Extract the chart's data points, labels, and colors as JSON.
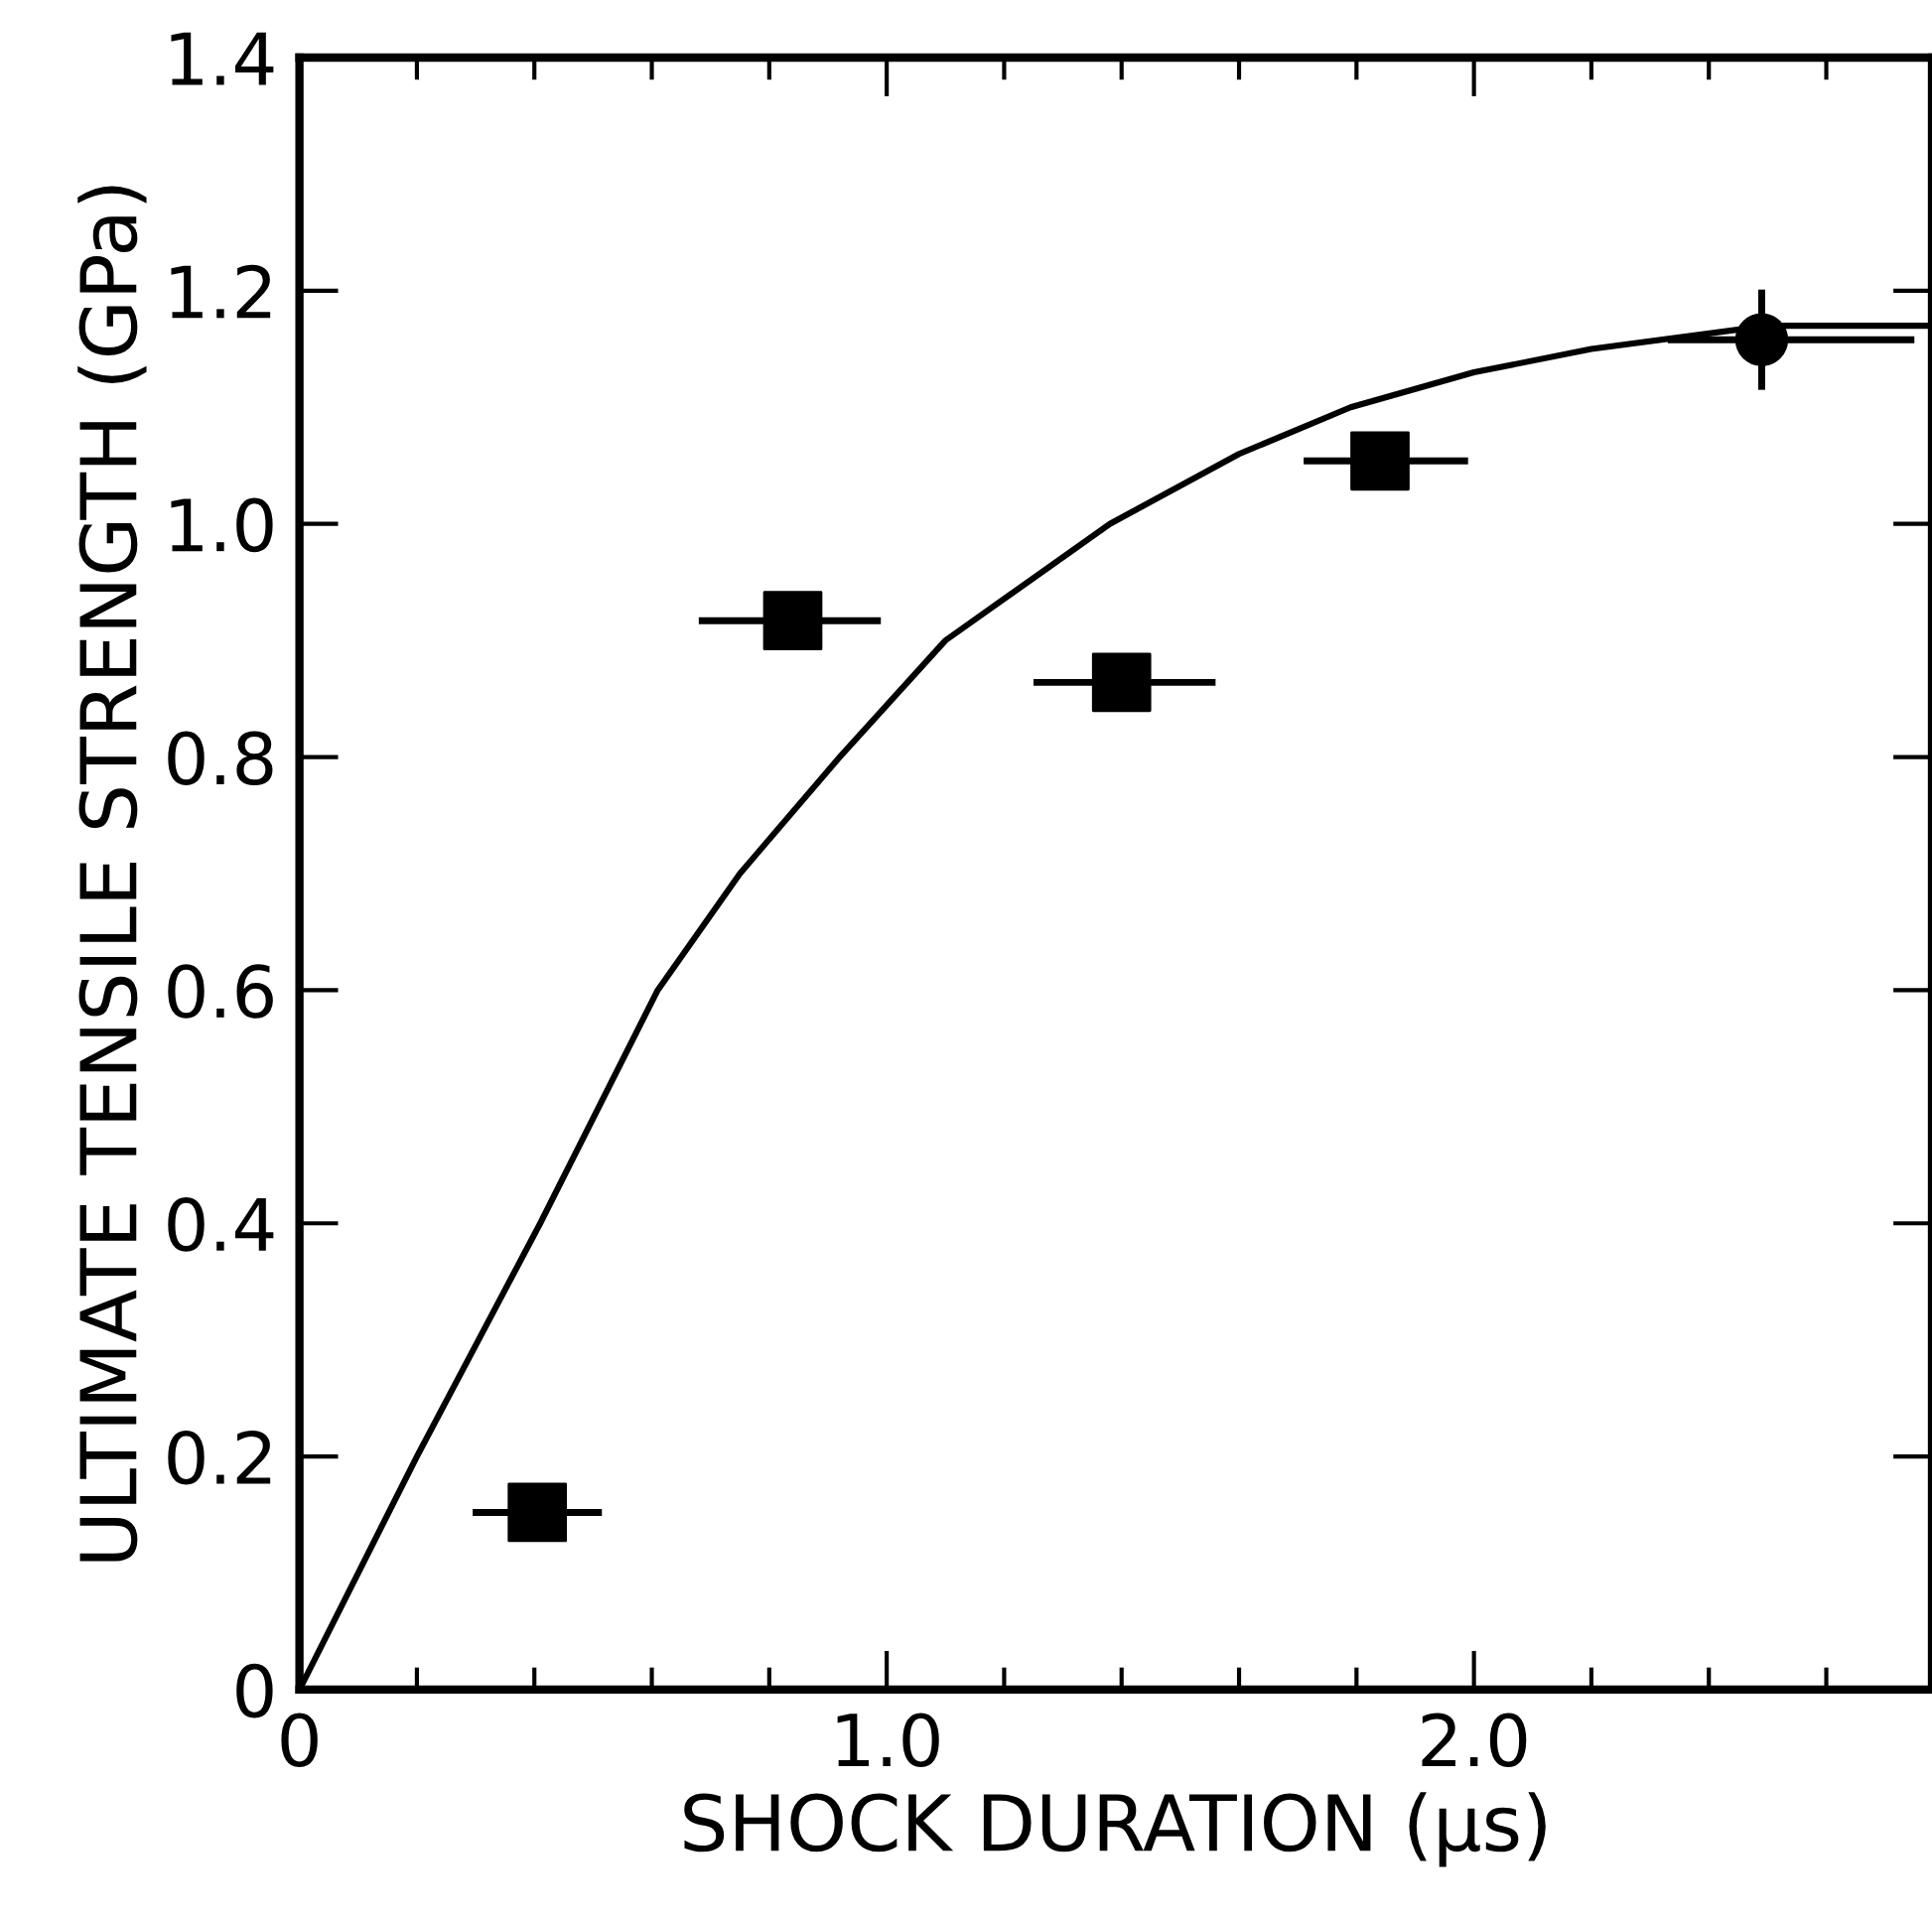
{
  "chart_data": {
    "type": "scatter",
    "xlabel": "SHOCK DURATION (μs)",
    "ylabel": "ULTIMATE TENSILE STRENGTH (GPa)",
    "xlim": [
      0,
      2.78
    ],
    "ylim": [
      0,
      1.4
    ],
    "xticks": [
      0,
      {
        "value": 0.2,
        "label": null
      },
      {
        "value": 0.4,
        "label": null
      },
      {
        "value": 0.6,
        "label": null
      },
      {
        "value": 0.8,
        "label": null
      },
      {
        "value": 1.0,
        "label": "1.0"
      },
      {
        "value": 1.2,
        "label": null
      },
      {
        "value": 1.4,
        "label": null
      },
      {
        "value": 1.6,
        "label": null
      },
      {
        "value": 1.8,
        "label": null
      },
      {
        "value": 2.0,
        "label": "2.0"
      },
      {
        "value": 2.2,
        "label": null
      },
      {
        "value": 2.4,
        "label": null
      },
      {
        "value": 2.6,
        "label": null
      }
    ],
    "yticks": [
      0,
      0.2,
      0.4,
      0.6,
      0.8,
      {
        "value": 1.0,
        "label": "1.0"
      },
      1.2,
      1.4
    ],
    "grid": false,
    "series": [
      {
        "marker": "square",
        "color": "#000000",
        "x": [
          0.405,
          0.84,
          1.4,
          1.84
        ],
        "values": [
          0.152,
          0.917,
          0.864,
          1.054
        ],
        "xerrors": [
          0.11,
          [
            0.68,
            0.99
          ],
          [
            1.25,
            1.56
          ],
          [
            1.71,
            1.99
          ]
        ]
      },
      {
        "marker": "circle",
        "color": "#000000",
        "x": [
          2.49
        ],
        "values": [
          1.158
        ],
        "xerrors": [
          [
            2.33,
            2.75
          ]
        ],
        "errors": [
          0.043
        ]
      },
      {
        "type": "line",
        "marker": "none",
        "color": "#000000",
        "x": [
          0,
          0.2,
          0.41,
          0.61,
          0.75,
          0.92,
          1.1,
          1.38,
          1.6,
          1.79,
          2.0,
          2.2,
          2.5,
          2.78
        ],
        "values": [
          0,
          0.2,
          0.4,
          0.6,
          0.7,
          0.8,
          0.9,
          1.0,
          1.06,
          1.1,
          1.13,
          1.15,
          1.17,
          1.17
        ]
      }
    ]
  }
}
